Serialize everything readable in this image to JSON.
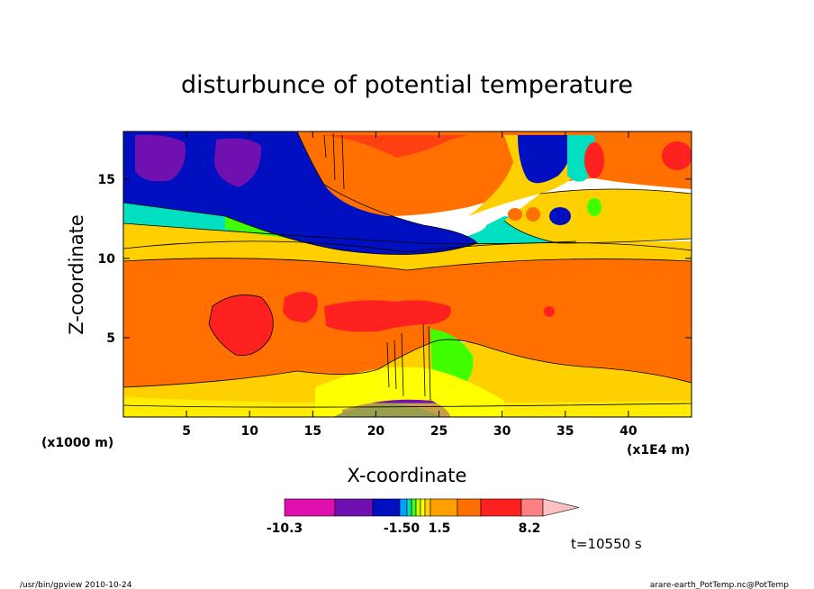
{
  "chart_data": {
    "type": "heatmap",
    "title": "disturbunce of potential temperature",
    "xlabel": "X-coordinate",
    "ylabel": "Z-coordinate",
    "x_unit_left": "(x1000 m)",
    "x_unit_right": "(x1E4 m)",
    "xlim": [
      0,
      45
    ],
    "ylim": [
      0,
      18
    ],
    "x_ticks": [
      5,
      10,
      15,
      20,
      25,
      30,
      35,
      40
    ],
    "y_ticks": [
      5,
      10,
      15
    ],
    "colorbar": {
      "colors": [
        "#e010b0",
        "#7010b0",
        "#0010c0",
        "#00a0ff",
        "#00e0c0",
        "#40ff00",
        "#c0ff00",
        "#ffff00",
        "#ffd000",
        "#ffa000",
        "#ff7000",
        "#ff2020",
        "#ff8080",
        "#ffc0c0"
      ],
      "labels": [
        {
          "text": "-10.3",
          "at": -10.3
        },
        {
          "text": "-1.50",
          "at": -1.5
        },
        {
          "text": "1.5",
          "at": 1.5
        },
        {
          "text": "8.2",
          "at": 8.2
        }
      ]
    },
    "field_features": [
      {
        "x": 9,
        "z": 7,
        "value": 6
      },
      {
        "x": 14,
        "z": 7.5,
        "value": 5
      },
      {
        "x": 20,
        "z": 7.5,
        "value": 5
      },
      {
        "x": 4,
        "z": 15.5,
        "value": -8
      },
      {
        "x": 8.5,
        "z": 15.5,
        "value": -8
      },
      {
        "x": 12,
        "z": 15,
        "value": -4
      },
      {
        "x": 28,
        "z": 11,
        "value": -3
      },
      {
        "x": 43,
        "z": 16.5,
        "value": 6
      },
      {
        "x": 37,
        "z": 16.5,
        "value": 5
      },
      {
        "x": 34,
        "z": 12.5,
        "value": -3
      },
      {
        "x": 24,
        "z": 0.5,
        "value": -8
      }
    ]
  },
  "time_label": "t=10550 s",
  "footer": {
    "left": "/usr/bin/gpview   2010-10-24",
    "right": "arare-earth_PotTemp.nc@PotTemp"
  }
}
